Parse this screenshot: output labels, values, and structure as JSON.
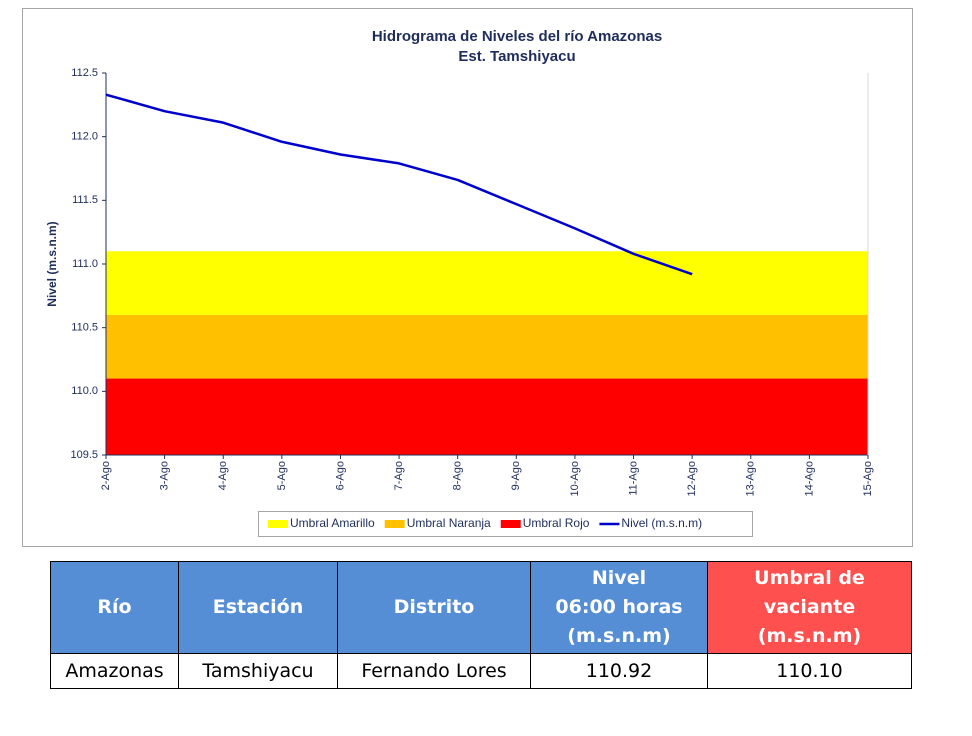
{
  "chart_data": {
    "type": "line",
    "title": "Hidrograma de Niveles del río Amazonas",
    "subtitle": "Est. Tamshiyacu",
    "y_label": "Nivel (m.s.n.m)",
    "categories": [
      "2-Ago",
      "3-Ago",
      "4-Ago",
      "5-Ago",
      "6-Ago",
      "7-Ago",
      "8-Ago",
      "9-Ago",
      "10-Ago",
      "11-Ago",
      "12-Ago",
      "13-Ago",
      "14-Ago",
      "15-Ago"
    ],
    "series": [
      {
        "name": "Nivel (m.s.n.m)",
        "color": "#0000cc",
        "values": [
          112.33,
          112.2,
          112.11,
          111.96,
          111.86,
          111.79,
          111.66,
          111.47,
          111.28,
          111.08,
          110.92,
          null,
          null,
          null
        ]
      }
    ],
    "bands": [
      {
        "name": "Umbral Amarillo",
        "color": "#ffff00",
        "from": 110.6,
        "to": 111.1
      },
      {
        "name": "Umbral Naranja",
        "color": "#ffc000",
        "from": 110.1,
        "to": 110.6
      },
      {
        "name": "Umbral Rojo",
        "color": "#ff0000",
        "from": 109.5,
        "to": 110.1
      }
    ],
    "ylim": [
      109.5,
      112.5
    ],
    "yticks": [
      109.5,
      {
        "value": 110,
        "label": "110.0"
      },
      110.5,
      {
        "value": 111,
        "label": "111.0"
      },
      111.5,
      {
        "value": 112,
        "label": "112.0"
      },
      112.5
    ],
    "legend": "bottom"
  },
  "table": {
    "header": [
      "Río",
      "Estación",
      "Distrito",
      "Nivel\n06:00 horas\n(m.s.n.m)",
      "Umbral de\nvaciante\n(m.s.n.m)"
    ],
    "rows": [
      [
        "Amazonas",
        "Tamshiyacu",
        "Fernando Lores",
        "110.92",
        "110.10"
      ]
    ]
  }
}
